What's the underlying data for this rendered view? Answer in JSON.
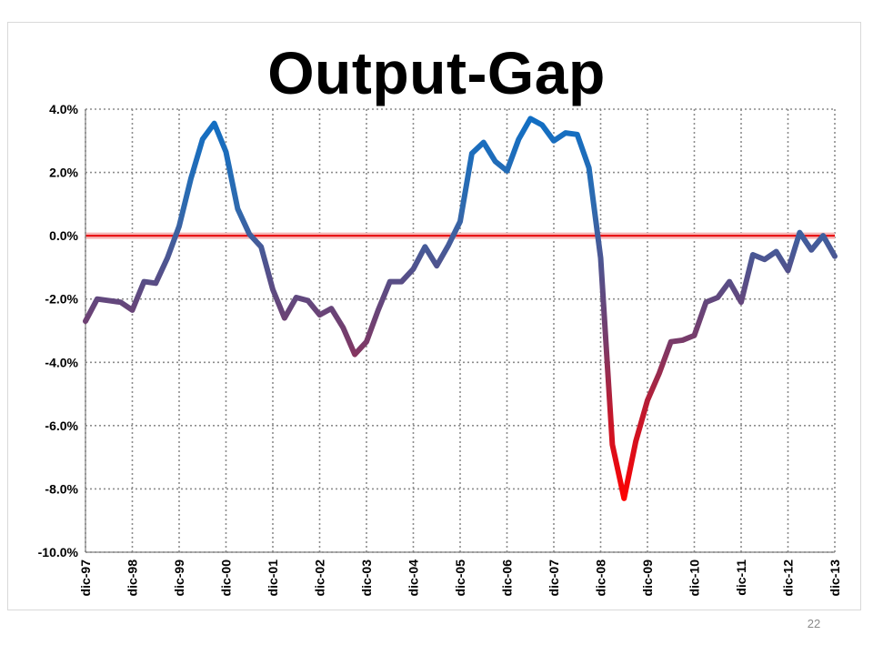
{
  "slide_number": "22",
  "colors": {
    "positive": "#1F6FB8",
    "neutral": "#5A4A80",
    "negative": "#FF0000",
    "zero_line": "#E8090B",
    "grid": "#8C8C8C"
  },
  "chart_data": {
    "type": "line",
    "title": "Output-Gap",
    "xlabel": "",
    "ylabel": "",
    "ylim": [
      -10.0,
      4.0
    ],
    "y_ticks": [
      "4.0%",
      "2.0%",
      "0.0%",
      "-2.0%",
      "-4.0%",
      "-6.0%",
      "-8.0%",
      "-10.0%"
    ],
    "y_tick_values": [
      4,
      2,
      0,
      -2,
      -4,
      -6,
      -8,
      -10
    ],
    "x_tick_labels": [
      "dic-97",
      "dic-98",
      "dic-99",
      "dic-00",
      "dic-01",
      "dic-02",
      "dic-03",
      "dic-04",
      "dic-05",
      "dic-06",
      "dic-07",
      "dic-08",
      "dic-09",
      "dic-10",
      "dic-11",
      "dic-12",
      "dic-13"
    ],
    "grid": "dotted",
    "legend": "none",
    "frequency": "quarterly",
    "series": [
      {
        "values": [
          -2.7,
          -2.0,
          -2.05,
          -2.1,
          -2.35,
          -1.45,
          -1.5,
          -0.7,
          0.3,
          1.8,
          3.05,
          3.55,
          2.65,
          0.85,
          0.05,
          -0.35,
          -1.7,
          -2.6,
          -1.95,
          -2.05,
          -2.5,
          -2.3,
          -2.9,
          -3.75,
          -3.35,
          -2.35,
          -1.45,
          -1.45,
          -1.05,
          -0.35,
          -0.95,
          -0.3,
          0.45,
          2.6,
          2.95,
          2.35,
          2.05,
          3.05,
          3.7,
          3.5,
          3.0,
          3.25,
          3.2,
          2.15,
          -0.7,
          -6.6,
          -8.3,
          -6.5,
          -5.2,
          -4.35,
          -3.35,
          -3.3,
          -3.15,
          -2.1,
          -1.95,
          -1.45,
          -2.1,
          -0.6,
          -0.75,
          -0.5,
          -1.1,
          0.1,
          -0.45,
          0.0,
          -0.65
        ]
      }
    ]
  }
}
